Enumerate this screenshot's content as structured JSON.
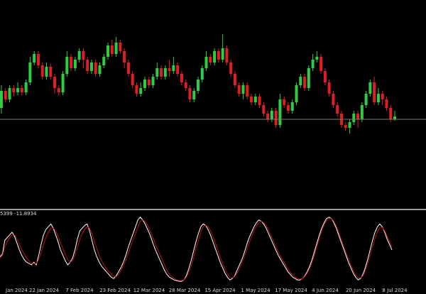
{
  "colors": {
    "background": "#000000",
    "bull": "#2ecc40",
    "bear": "#e01e1e",
    "hline": "#7a7a7a",
    "separator": "#cfcfcf",
    "osc_main": "#ffffff",
    "osc_signal": "#c0101a"
  },
  "indicator": {
    "label": "5399 -11.8934"
  },
  "chart_data": [
    {
      "type": "candlestick",
      "title": "",
      "x_tick_labels": [
        "Jan 2024",
        "22 Jan 2024",
        "7 Feb 2024",
        "23 Feb 2024",
        "12 Mar 2024",
        "28 Mar 2024",
        "15 Apr 2024",
        "1 May 2024",
        "17 May 2024",
        "4 Jun 2024",
        "20 Jun 2024",
        "8 Jul 2024"
      ],
      "ylim": [
        0,
        100
      ],
      "horizontal_line": 36,
      "candles": [
        [
          44,
          56,
          60,
          40
        ],
        [
          56,
          50,
          58,
          48
        ],
        [
          50,
          58,
          60,
          48
        ],
        [
          58,
          55,
          60,
          52
        ],
        [
          55,
          58,
          62,
          53
        ],
        [
          58,
          55,
          60,
          53
        ],
        [
          55,
          62,
          64,
          53
        ],
        [
          62,
          76,
          80,
          60
        ],
        [
          76,
          82,
          84,
          74
        ],
        [
          82,
          74,
          84,
          72
        ],
        [
          74,
          66,
          76,
          64
        ],
        [
          66,
          73,
          76,
          64
        ],
        [
          73,
          66,
          75,
          64
        ],
        [
          66,
          58,
          68,
          54
        ],
        [
          58,
          55,
          60,
          53
        ],
        [
          55,
          68,
          70,
          53
        ],
        [
          68,
          80,
          84,
          66
        ],
        [
          80,
          72,
          82,
          70
        ],
        [
          72,
          78,
          80,
          70
        ],
        [
          78,
          84,
          86,
          76
        ],
        [
          84,
          78,
          86,
          72
        ],
        [
          78,
          70,
          80,
          68
        ],
        [
          70,
          76,
          78,
          68
        ],
        [
          76,
          68,
          78,
          66
        ],
        [
          68,
          74,
          76,
          66
        ],
        [
          74,
          80,
          82,
          72
        ],
        [
          80,
          88,
          90,
          78
        ],
        [
          88,
          82,
          92,
          80
        ],
        [
          82,
          90,
          94,
          80
        ],
        [
          90,
          84,
          92,
          82
        ],
        [
          84,
          76,
          86,
          72
        ],
        [
          76,
          68,
          78,
          66
        ],
        [
          68,
          60,
          70,
          58
        ],
        [
          60,
          54,
          62,
          52
        ],
        [
          54,
          58,
          62,
          52
        ],
        [
          58,
          64,
          66,
          56
        ],
        [
          64,
          60,
          66,
          58
        ],
        [
          60,
          66,
          68,
          58
        ],
        [
          66,
          72,
          76,
          64
        ],
        [
          72,
          66,
          74,
          64
        ],
        [
          66,
          72,
          74,
          64
        ],
        [
          72,
          70,
          78,
          66
        ],
        [
          70,
          74,
          80,
          68
        ],
        [
          74,
          68,
          76,
          66
        ],
        [
          68,
          62,
          70,
          60
        ],
        [
          62,
          58,
          64,
          56
        ],
        [
          58,
          50,
          60,
          48
        ],
        [
          50,
          56,
          58,
          48
        ],
        [
          56,
          64,
          66,
          54
        ],
        [
          64,
          72,
          74,
          62
        ],
        [
          72,
          80,
          84,
          70
        ],
        [
          80,
          76,
          82,
          74
        ],
        [
          76,
          84,
          86,
          74
        ],
        [
          84,
          78,
          86,
          76
        ],
        [
          78,
          86,
          96,
          76
        ],
        [
          86,
          76,
          88,
          74
        ],
        [
          76,
          68,
          78,
          66
        ],
        [
          68,
          60,
          70,
          58
        ],
        [
          60,
          54,
          62,
          52
        ],
        [
          54,
          60,
          62,
          50
        ],
        [
          60,
          52,
          62,
          50
        ],
        [
          52,
          48,
          54,
          46
        ],
        [
          48,
          52,
          54,
          46
        ],
        [
          52,
          46,
          54,
          44
        ],
        [
          46,
          40,
          48,
          38
        ],
        [
          40,
          36,
          42,
          34
        ],
        [
          36,
          42,
          44,
          34
        ],
        [
          42,
          32,
          44,
          30
        ],
        [
          32,
          50,
          54,
          30
        ],
        [
          50,
          46,
          52,
          44
        ],
        [
          46,
          42,
          48,
          40
        ],
        [
          42,
          48,
          50,
          40
        ],
        [
          48,
          60,
          62,
          46
        ],
        [
          60,
          66,
          68,
          58
        ],
        [
          66,
          58,
          68,
          56
        ],
        [
          58,
          72,
          74,
          56
        ],
        [
          72,
          78,
          82,
          70
        ],
        [
          78,
          80,
          84,
          76
        ],
        [
          80,
          70,
          82,
          68
        ],
        [
          70,
          62,
          72,
          60
        ],
        [
          62,
          54,
          64,
          52
        ],
        [
          54,
          46,
          56,
          44
        ],
        [
          46,
          40,
          48,
          38
        ],
        [
          40,
          32,
          42,
          30
        ],
        [
          32,
          30,
          34,
          28
        ],
        [
          30,
          34,
          36,
          26
        ],
        [
          34,
          40,
          42,
          32
        ],
        [
          40,
          36,
          42,
          30
        ],
        [
          36,
          46,
          48,
          34
        ],
        [
          46,
          54,
          56,
          44
        ],
        [
          54,
          62,
          64,
          52
        ],
        [
          62,
          48,
          66,
          46
        ],
        [
          48,
          54,
          58,
          46
        ],
        [
          54,
          50,
          56,
          46
        ],
        [
          50,
          44,
          52,
          42
        ],
        [
          44,
          36,
          46,
          34
        ],
        [
          36,
          38,
          42,
          35
        ]
      ]
    },
    {
      "type": "line",
      "title": "",
      "ylim": [
        0,
        100
      ],
      "series": [
        {
          "values": [
            38,
            42,
            62,
            66,
            70,
            74,
            68,
            58,
            48,
            40,
            34,
            30,
            28,
            26,
            30,
            26,
            40,
            56,
            70,
            78,
            82,
            86,
            80,
            70,
            60,
            48,
            40,
            32,
            26,
            30,
            36,
            48,
            64,
            76,
            80,
            84,
            86,
            76,
            62,
            48,
            38,
            30,
            24,
            20,
            16,
            12,
            8,
            6,
            10,
            16,
            22,
            30,
            40,
            52,
            62,
            72,
            82,
            92,
            96,
            92,
            86,
            78,
            70,
            60,
            50,
            42,
            34,
            26,
            18,
            12,
            8,
            6,
            4,
            3,
            2,
            2,
            4,
            10,
            20,
            32,
            46,
            60,
            72,
            82,
            86,
            84,
            78,
            70,
            60,
            50,
            40,
            30,
            22,
            14,
            8,
            4,
            6,
            10,
            18,
            26,
            34,
            44,
            56,
            66,
            74,
            82,
            88,
            92,
            90,
            86,
            80,
            72,
            64,
            56,
            48,
            40,
            34,
            28,
            22,
            16,
            12,
            8,
            6,
            4,
            4,
            6,
            10,
            16,
            24,
            34,
            46,
            58,
            70,
            80,
            88,
            94,
            96,
            94,
            88,
            80,
            70,
            60,
            50,
            40,
            30,
            22,
            14,
            8,
            4,
            6,
            12,
            22,
            34,
            48,
            62,
            74,
            82,
            86,
            82,
            74,
            64,
            56,
            48
          ]
        },
        {
          "values": [
            36,
            40,
            52,
            60,
            66,
            70,
            70,
            64,
            56,
            48,
            42,
            36,
            32,
            28,
            28,
            28,
            34,
            44,
            56,
            66,
            74,
            80,
            80,
            76,
            68,
            58,
            50,
            42,
            34,
            30,
            32,
            40,
            52,
            64,
            72,
            78,
            82,
            80,
            72,
            60,
            50,
            40,
            32,
            26,
            20,
            16,
            12,
            9,
            9,
            12,
            18,
            25,
            33,
            43,
            53,
            63,
            72,
            82,
            90,
            92,
            90,
            84,
            76,
            68,
            58,
            50,
            42,
            34,
            26,
            18,
            12,
            9,
            6,
            4,
            3,
            3,
            4,
            8,
            15,
            24,
            36,
            50,
            62,
            74,
            82,
            84,
            82,
            76,
            68,
            58,
            48,
            38,
            28,
            20,
            13,
            8,
            7,
            9,
            14,
            21,
            29,
            38,
            48,
            58,
            68,
            76,
            83,
            88,
            90,
            88,
            84,
            77,
            69,
            61,
            53,
            45,
            38,
            32,
            26,
            20,
            15,
            11,
            8,
            6,
            5,
            6,
            9,
            14,
            21,
            30,
            41,
            53,
            65,
            76,
            85,
            91,
            94,
            94,
            90,
            83,
            74,
            64,
            54,
            44,
            35,
            26,
            18,
            11,
            7,
            7,
            10,
            18,
            28,
            40,
            53,
            65,
            75,
            81,
            81,
            76,
            68,
            60,
            52
          ]
        }
      ]
    }
  ]
}
